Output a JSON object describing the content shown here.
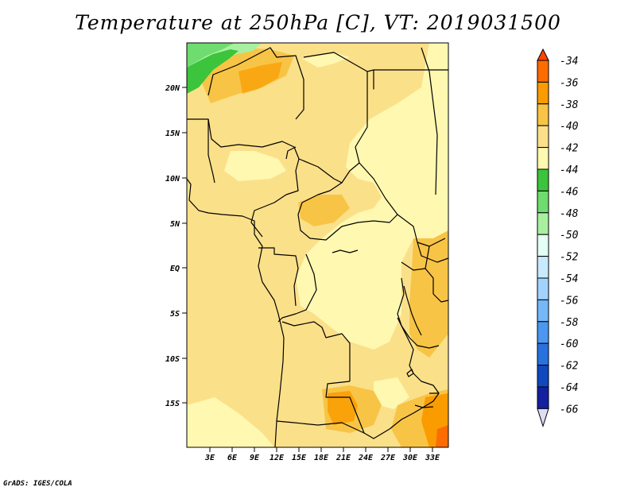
{
  "title": "Temperature at 250hPa [C], VT: 2019031500",
  "credit": "GrADS: IGES/COLA",
  "lat_labels": [
    "20N",
    "15N",
    "10N",
    "5N",
    "EQ",
    "5S",
    "10S",
    "15S"
  ],
  "lon_labels": [
    "3E",
    "6E",
    "9E",
    "12E",
    "15E",
    "18E",
    "21E",
    "24E",
    "27E",
    "30E",
    "33E"
  ],
  "colorbar": {
    "labels": [
      "-34",
      "-36",
      "-38",
      "-40",
      "-42",
      "-44",
      "-46",
      "-48",
      "-50",
      "-52",
      "-54",
      "-56",
      "-58",
      "-60",
      "-62",
      "-64",
      "-66"
    ],
    "colors": [
      "#ff4500",
      "#fc6c00",
      "#fa9c00",
      "#f8c445",
      "#fbe08a",
      "#fff8b0",
      "#3cc43c",
      "#6edc6e",
      "#a8f0a0",
      "#e4fff4",
      "#c8eaff",
      "#a0d4ff",
      "#74b8f8",
      "#4c98f0",
      "#2872e0",
      "#1048c0",
      "#1420a0",
      "#080c60",
      "#dcdcf4"
    ]
  },
  "legend_colors": {
    "c44": "#fff8b0",
    "c42": "#fbe08a",
    "c40": "#f8c445",
    "c38": "#fa9c00",
    "c36": "#fc6c00",
    "g46": "#3cc43c",
    "g48": "#6edc6e",
    "g50": "#a8f0a0"
  }
}
